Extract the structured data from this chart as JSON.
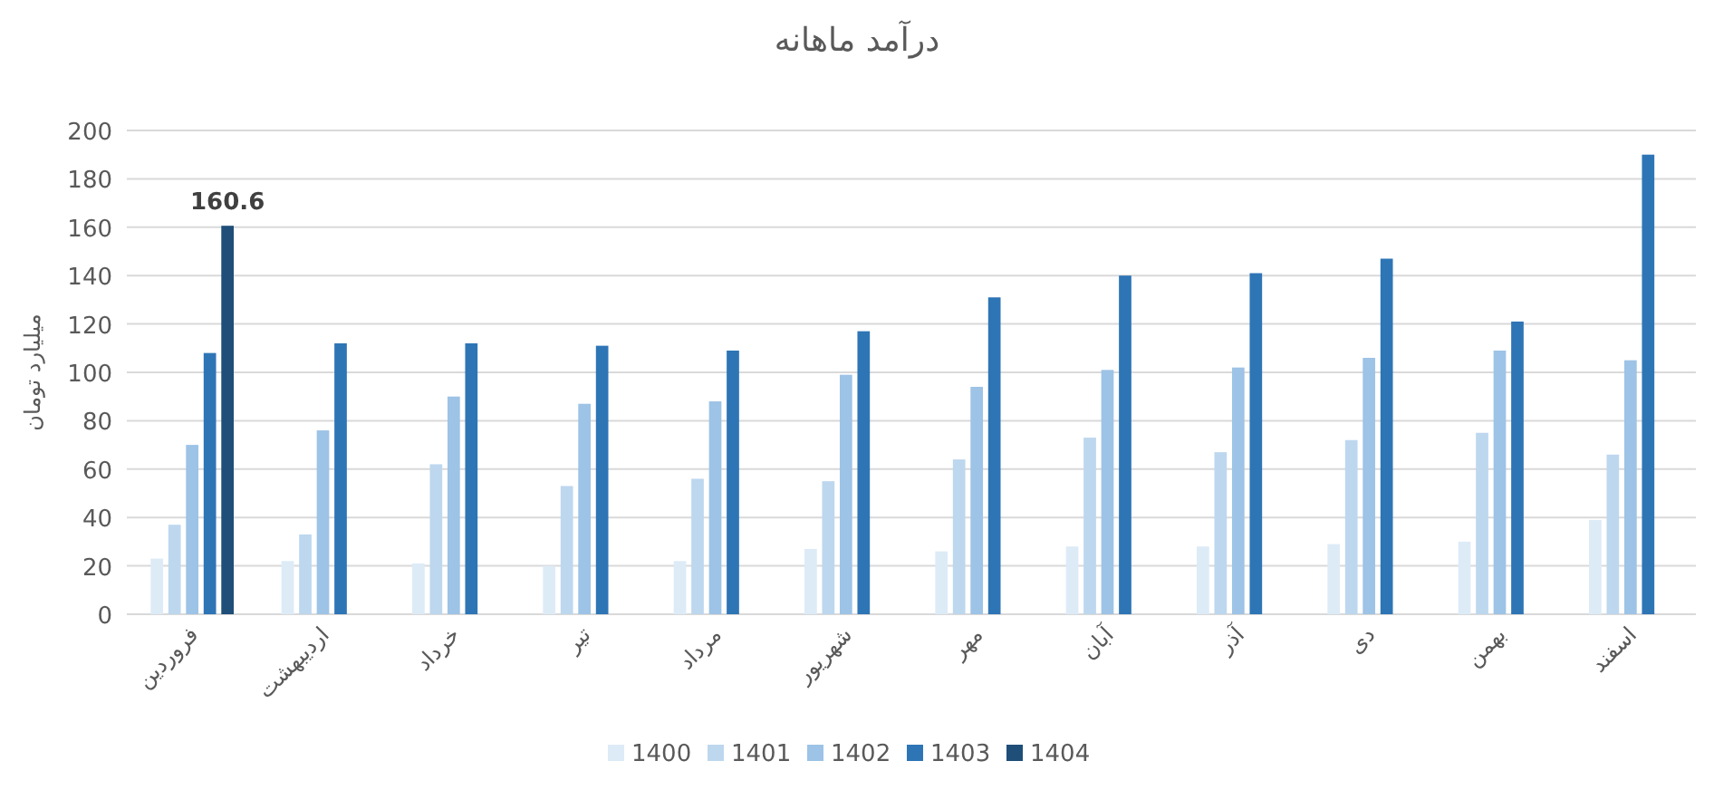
{
  "chart_data": {
    "type": "bar",
    "title": "درآمد ماهانه",
    "ylabel": "میلیارد تومان",
    "categories": [
      "فروردین",
      "اردیبهشت",
      "خرداد",
      "تیر",
      "مرداد",
      "شهریور",
      "مهر",
      "آبان",
      "آذر",
      "دی",
      "بهمن",
      "اسفند"
    ],
    "series": [
      {
        "name": "1400",
        "color": "#ddebf7",
        "values": [
          23,
          22,
          21,
          20,
          22,
          27,
          26,
          28,
          28,
          29,
          30,
          39
        ]
      },
      {
        "name": "1401",
        "color": "#bdd7ee",
        "values": [
          37,
          33,
          62,
          53,
          56,
          55,
          64,
          73,
          67,
          72,
          75,
          66
        ]
      },
      {
        "name": "1402",
        "color": "#9dc3e6",
        "values": [
          70,
          76,
          90,
          87,
          88,
          99,
          94,
          101,
          102,
          106,
          109,
          105
        ]
      },
      {
        "name": "1403",
        "color": "#2e75b6",
        "values": [
          108,
          112,
          112,
          111,
          109,
          117,
          131,
          140,
          141,
          147,
          121,
          190
        ]
      },
      {
        "name": "1404",
        "color": "#1f4e79",
        "values": [
          160.6,
          null,
          null,
          null,
          null,
          null,
          null,
          null,
          null,
          null,
          null,
          null
        ],
        "value_labels": [
          "160.6",
          null,
          null,
          null,
          null,
          null,
          null,
          null,
          null,
          null,
          null,
          null
        ]
      }
    ],
    "ylim": [
      0,
      200
    ],
    "yticks": [
      0,
      20,
      40,
      60,
      80,
      100,
      120,
      140,
      160,
      180,
      200
    ],
    "grid": "y",
    "legend": "bottom"
  }
}
